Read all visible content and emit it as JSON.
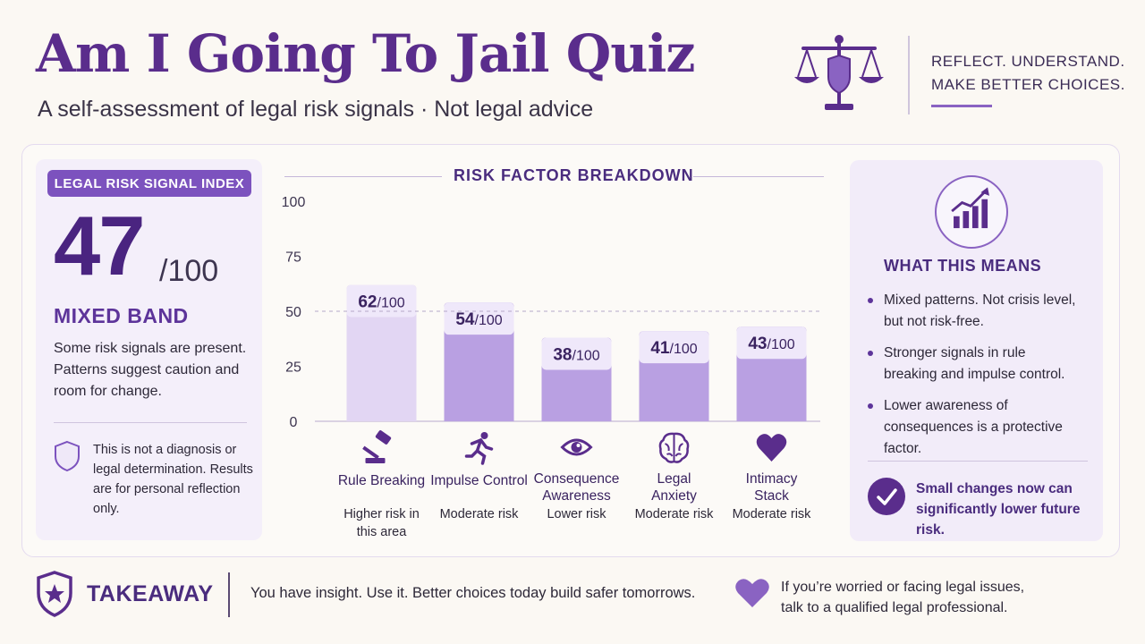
{
  "header": {
    "title": "Am I Going To Jail Quiz",
    "subtitle": "A self-assessment of legal risk signals · Not legal advice",
    "tagline_line1": "REFLECT. UNDERSTAND.",
    "tagline_line2": "MAKE BETTER CHOICES."
  },
  "score_panel": {
    "pill_label": "LEGAL RISK SIGNAL INDEX",
    "score": "47",
    "score_max": "/100",
    "band": "MIXED BAND",
    "band_description": "Some risk signals are present. Patterns suggest caution and room for change.",
    "disclaimer": "This is not a diagnosis or legal determination. Results are for personal reflection only."
  },
  "chart_data": {
    "type": "bar",
    "title": "RISK FACTOR BREAKDOWN",
    "categories": [
      {
        "label_lines": [
          "Rule Breaking"
        ],
        "icon": "gavel-icon",
        "risk_lines": [
          "Higher risk in",
          "this area"
        ]
      },
      {
        "label_lines": [
          "Impulse Control"
        ],
        "icon": "running-person-icon",
        "risk_lines": [
          "Moderate risk"
        ]
      },
      {
        "label_lines": [
          "Consequence",
          "Awareness"
        ],
        "icon": "eye-icon",
        "risk_lines": [
          "Lower risk"
        ]
      },
      {
        "label_lines": [
          "Legal",
          "Anxiety"
        ],
        "icon": "brain-icon",
        "risk_lines": [
          "Moderate risk"
        ]
      },
      {
        "label_lines": [
          "Intimacy",
          "Stack"
        ],
        "icon": "heart-icon",
        "risk_lines": [
          "Moderate risk"
        ]
      }
    ],
    "values": [
      62,
      54,
      38,
      41,
      43
    ],
    "value_suffix": "/100",
    "yticks": [
      0,
      25,
      50,
      75,
      100
    ],
    "ylim": [
      0,
      100
    ],
    "reference_line": 50,
    "xlabel": "",
    "ylabel": "",
    "grid": false,
    "colors": {
      "first_bar": "#e2d6f3",
      "other_bars": "#b9a0e2",
      "value_label_bg": "#efe8fa",
      "value_label_text": "#3a2360"
    }
  },
  "means_panel": {
    "title": "WHAT THIS MEANS",
    "bullets": [
      "Mixed patterns. Not crisis level, but not risk-free.",
      "Stronger signals in rule breaking and impulse control.",
      "Lower awareness of consequences is a protective factor."
    ],
    "callout": "Small changes now can significantly lower future risk."
  },
  "footer": {
    "takeaway_label": "TAKEAWAY",
    "takeaway_text": "You have insight. Use it. Better choices today build safer tomorrows.",
    "help_text": "If you’re worried or facing legal issues, talk to a qualified legal professional."
  },
  "theme": {
    "accent": "#5a2d8c",
    "accent_light": "#8a63c2",
    "background": "#fbf8f3"
  }
}
